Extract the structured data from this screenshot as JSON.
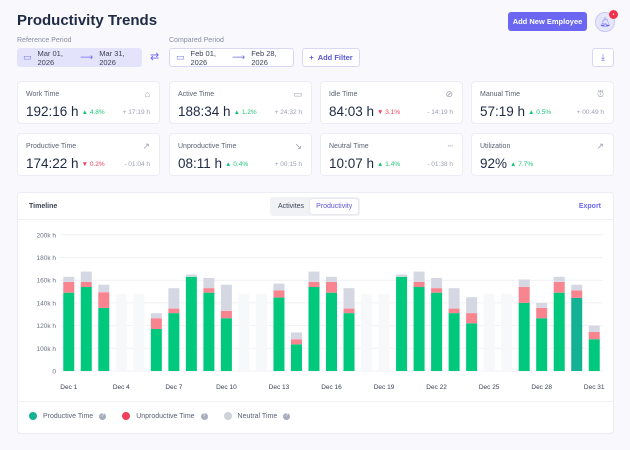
{
  "header": {
    "title": "Productivity Trends",
    "add_employee_label": "Add New Employee",
    "notification_badge": "•"
  },
  "filters": {
    "reference_label": "Reference Period",
    "reference_start": "Mar 01, 2026",
    "reference_end": "Mar 31, 2026",
    "compared_label": "Compared Period",
    "compared_start": "Feb 01, 2026",
    "compared_end": "Feb 28, 2026",
    "add_filter_label": "Add Filter",
    "arrow": "⟶"
  },
  "cards": [
    {
      "label": "Work Time",
      "value": "192:16 h",
      "pct": "4.8%",
      "dir": "up",
      "delta": "+ 17:19 h",
      "icon": "briefcase-icon"
    },
    {
      "label": "Active Time",
      "value": "188:34 h",
      "pct": "1.2%",
      "dir": "up",
      "delta": "+ 24:32 h",
      "icon": "monitor-icon"
    },
    {
      "label": "Idle Time",
      "value": "84:03 h",
      "pct": "3.1%",
      "dir": "down",
      "delta": "- 14:19 h",
      "icon": "monitor-off-icon"
    },
    {
      "label": "Manual Time",
      "value": "57:19 h",
      "pct": "0.5%",
      "dir": "up",
      "delta": "+ 00:49 h",
      "icon": "alarm-clock-icon"
    },
    {
      "label": "Productive Time",
      "value": "174:22 h",
      "pct": "0.2%",
      "dir": "down",
      "delta": "- 01:04 h",
      "icon": "trend-up-icon"
    },
    {
      "label": "Unproductive Time",
      "value": "08:11 h",
      "pct": "0.4%",
      "dir": "up",
      "delta": "+ 00:15 h",
      "icon": "trend-down-icon"
    },
    {
      "label": "Neutral Time",
      "value": "10:07 h",
      "pct": "1.4%",
      "dir": "up",
      "delta": "- 01:38 h",
      "icon": "dashes-icon"
    },
    {
      "label": "Utilization",
      "value": "92%",
      "pct": "7.7%",
      "dir": "up",
      "delta": "",
      "icon": "trend-up-icon"
    }
  ],
  "timeline": {
    "title": "Timeline",
    "tabs": [
      "Activites",
      "Productivity"
    ],
    "active_tab": "Productivity",
    "export_label": "Export"
  },
  "colors": {
    "productive": "#00c97e",
    "unproductive": "#f8848f",
    "neutral": "#d5d8e3",
    "highlight": "#14b295",
    "accent": "#6b67f2"
  },
  "chart_data": {
    "type": "bar",
    "stacked": true,
    "title": "Timeline",
    "ylabel": "",
    "xlabel": "",
    "y_ticks": [
      "0",
      "100k h",
      "120k h",
      "140k h",
      "160k h",
      "180k h",
      "200k h"
    ],
    "y_tick_values": [
      0,
      100,
      120,
      140,
      160,
      180,
      200
    ],
    "x_ticks": [
      "Dec 1",
      "Dec 4",
      "Dec 7",
      "Dec 10",
      "Dec 13",
      "Dec 16",
      "Dec 19",
      "Dec 22",
      "Dec 25",
      "Dec 28",
      "Dec 31"
    ],
    "categories": [
      "Dec 1",
      "Dec 2",
      "Dec 3",
      "Dec 4",
      "Dec 5",
      "Dec 6",
      "Dec 7",
      "Dec 8",
      "Dec 9",
      "Dec 10",
      "Dec 11",
      "Dec 12",
      "Dec 13",
      "Dec 14",
      "Dec 15",
      "Dec 16",
      "Dec 17",
      "Dec 18",
      "Dec 19",
      "Dec 20",
      "Dec 21",
      "Dec 22",
      "Dec 23",
      "Dec 24",
      "Dec 25",
      "Dec 26",
      "Dec 27",
      "Dec 28",
      "Dec 29",
      "Dec 30",
      "Dec 31"
    ],
    "units": "thousand hours (cumulative stack tops)",
    "highlighted": "Dec 30",
    "series": [
      {
        "name": "Productive Time",
        "values": [
          149,
          154,
          135.6,
          null,
          null,
          117,
          131,
          163,
          149,
          126.5,
          null,
          null,
          144.7,
          103.5,
          154,
          149,
          131,
          null,
          null,
          163,
          154,
          149,
          131,
          122,
          null,
          null,
          140,
          126.5,
          149,
          144.4,
          108
        ]
      },
      {
        "name": "Unproductive Time",
        "values": [
          9.5,
          4.5,
          13.8,
          null,
          null,
          9.5,
          4,
          0,
          4,
          6.5,
          null,
          null,
          6.3,
          4.5,
          4.5,
          9.5,
          4,
          null,
          null,
          0,
          4.5,
          4,
          4,
          9,
          null,
          null,
          14,
          9.1,
          9.5,
          6.6,
          6.4
        ]
      },
      {
        "name": "Neutral Time",
        "values": [
          4.5,
          9.1,
          6.6,
          null,
          null,
          4.5,
          18,
          2,
          9,
          23,
          null,
          null,
          6,
          6,
          9.1,
          4.5,
          18,
          null,
          null,
          2,
          9.1,
          9,
          18,
          14,
          null,
          null,
          6.6,
          4.4,
          4.5,
          5,
          5.6
        ]
      }
    ],
    "legend": [
      "Productive Time",
      "Unproductive Time",
      "Neutral Time"
    ],
    "legend_position": "bottom-left",
    "grid": true
  }
}
